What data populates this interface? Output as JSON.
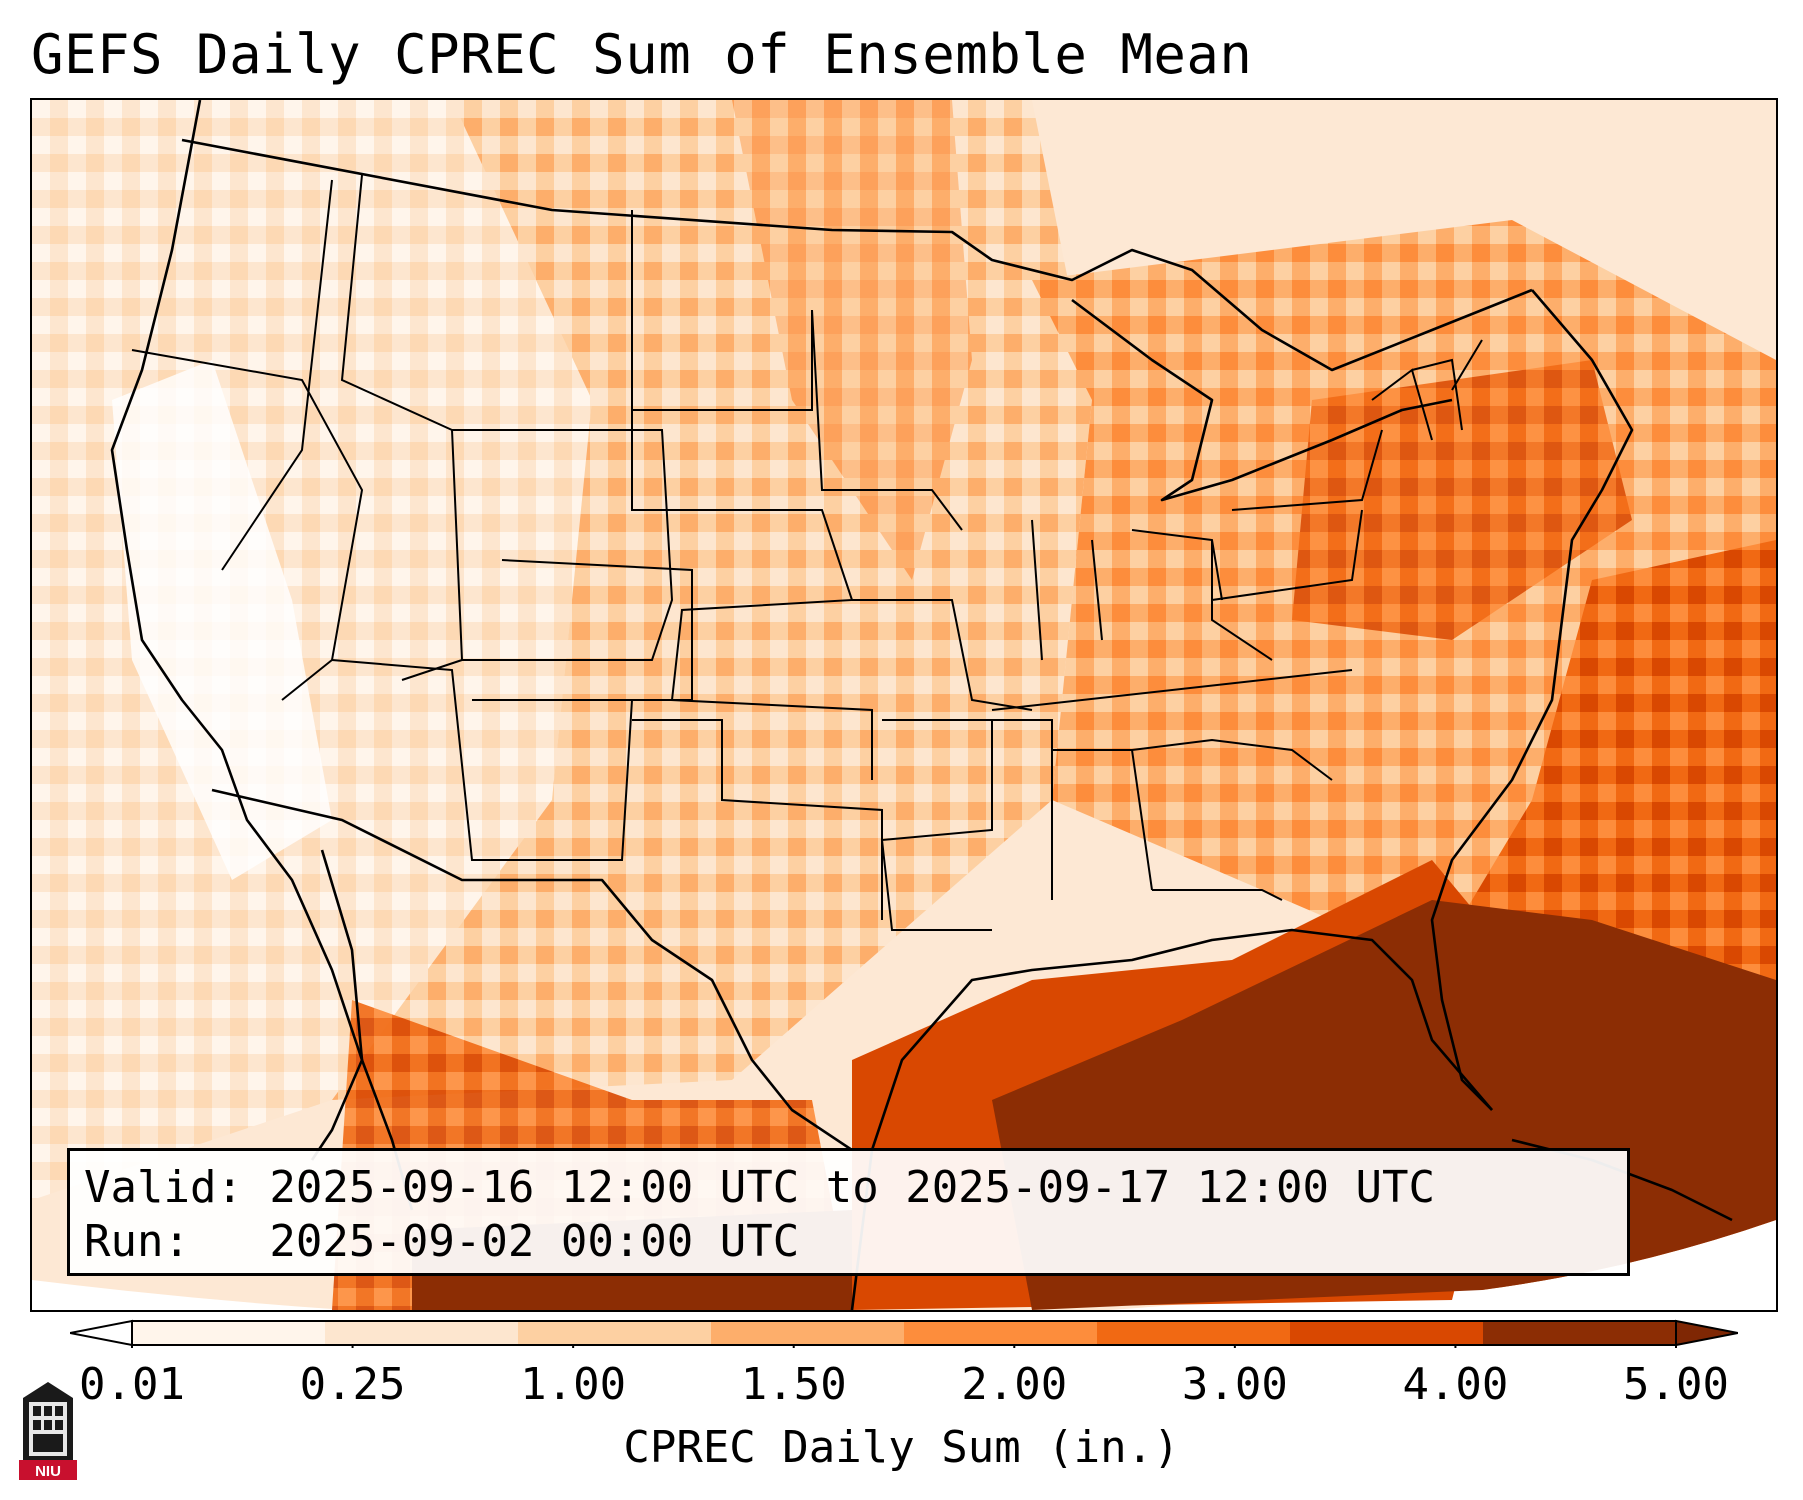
{
  "title": "GEFS Daily CPREC Sum of Ensemble Mean",
  "info": {
    "valid": "Valid: 2025-09-16 12:00 UTC to 2025-09-17 12:00 UTC",
    "run": "Run:   2025-09-02 00:00 UTC"
  },
  "colorbar": {
    "label": "CPREC Daily Sum (in.)",
    "ticks": [
      "0.01",
      "0.25",
      "1.00",
      "1.50",
      "2.00",
      "3.00",
      "4.00",
      "5.00"
    ],
    "colors": [
      "#fff5eb",
      "#fde6cf",
      "#fdd0a2",
      "#fdae6b",
      "#fd8d3c",
      "#f16913",
      "#d94801",
      "#8c2d04"
    ],
    "under_color": "#ffffff",
    "over_color": "#7f2704"
  },
  "logo": {
    "text": "NIU",
    "color": "#c8102e"
  }
}
